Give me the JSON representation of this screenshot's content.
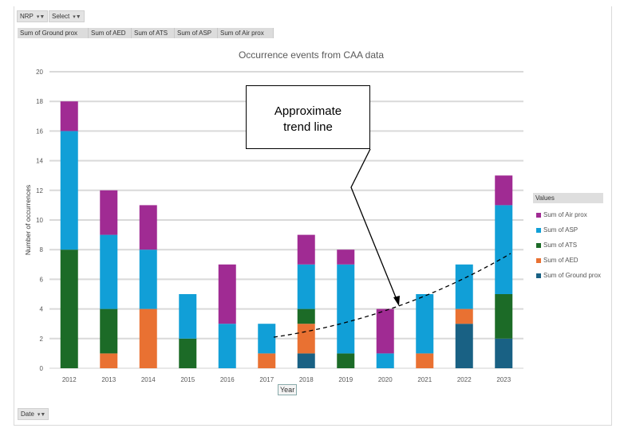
{
  "filters": {
    "nrp": "NRP",
    "select": "Select",
    "date": "Date"
  },
  "value_headers": [
    "Sum of Ground prox",
    "Sum of AED",
    "Sum of ATS",
    "Sum of ASP",
    "Sum of Air prox"
  ],
  "annotation": {
    "text_line1": "Approximate",
    "text_line2": "trend line"
  },
  "chart_data": {
    "type": "bar",
    "stacked": true,
    "title": "Occurrence events from CAA data",
    "xlabel": "Year",
    "ylabel": "Number of occurrences",
    "ylim": [
      0,
      20
    ],
    "yticks": [
      0,
      2,
      4,
      6,
      8,
      10,
      12,
      14,
      16,
      18,
      20
    ],
    "grid": true,
    "legend_title": "Values",
    "legend_position": "right",
    "categories": [
      "2012",
      "2013",
      "2014",
      "2015",
      "2016",
      "2017",
      "2018",
      "2019",
      "2020",
      "2021",
      "2022",
      "2023"
    ],
    "series": [
      {
        "name": "Sum of Ground prox",
        "color": "#196184",
        "values": [
          0,
          0,
          0,
          0,
          0,
          0,
          1,
          0,
          0,
          0,
          3,
          2
        ]
      },
      {
        "name": "Sum of AED",
        "color": "#E97132",
        "values": [
          0,
          1,
          4,
          0,
          0,
          1,
          2,
          0,
          0,
          1,
          1,
          0
        ]
      },
      {
        "name": "Sum of ATS",
        "color": "#1C6B27",
        "values": [
          8,
          3,
          0,
          2,
          0,
          0,
          1,
          1,
          0,
          0,
          0,
          3
        ]
      },
      {
        "name": "Sum of ASP",
        "color": "#119FD7",
        "values": [
          8,
          5,
          4,
          3,
          3,
          2,
          3,
          6,
          1,
          4,
          3,
          6
        ]
      },
      {
        "name": "Sum of Air prox",
        "color": "#A02B93",
        "values": [
          2,
          3,
          3,
          0,
          4,
          0,
          2,
          1,
          3,
          0,
          0,
          2
        ]
      }
    ],
    "trend_line": {
      "style": "dashed",
      "x": [
        "2017",
        "2023"
      ],
      "y_start": 2.1,
      "y_end": 7.7
    }
  }
}
